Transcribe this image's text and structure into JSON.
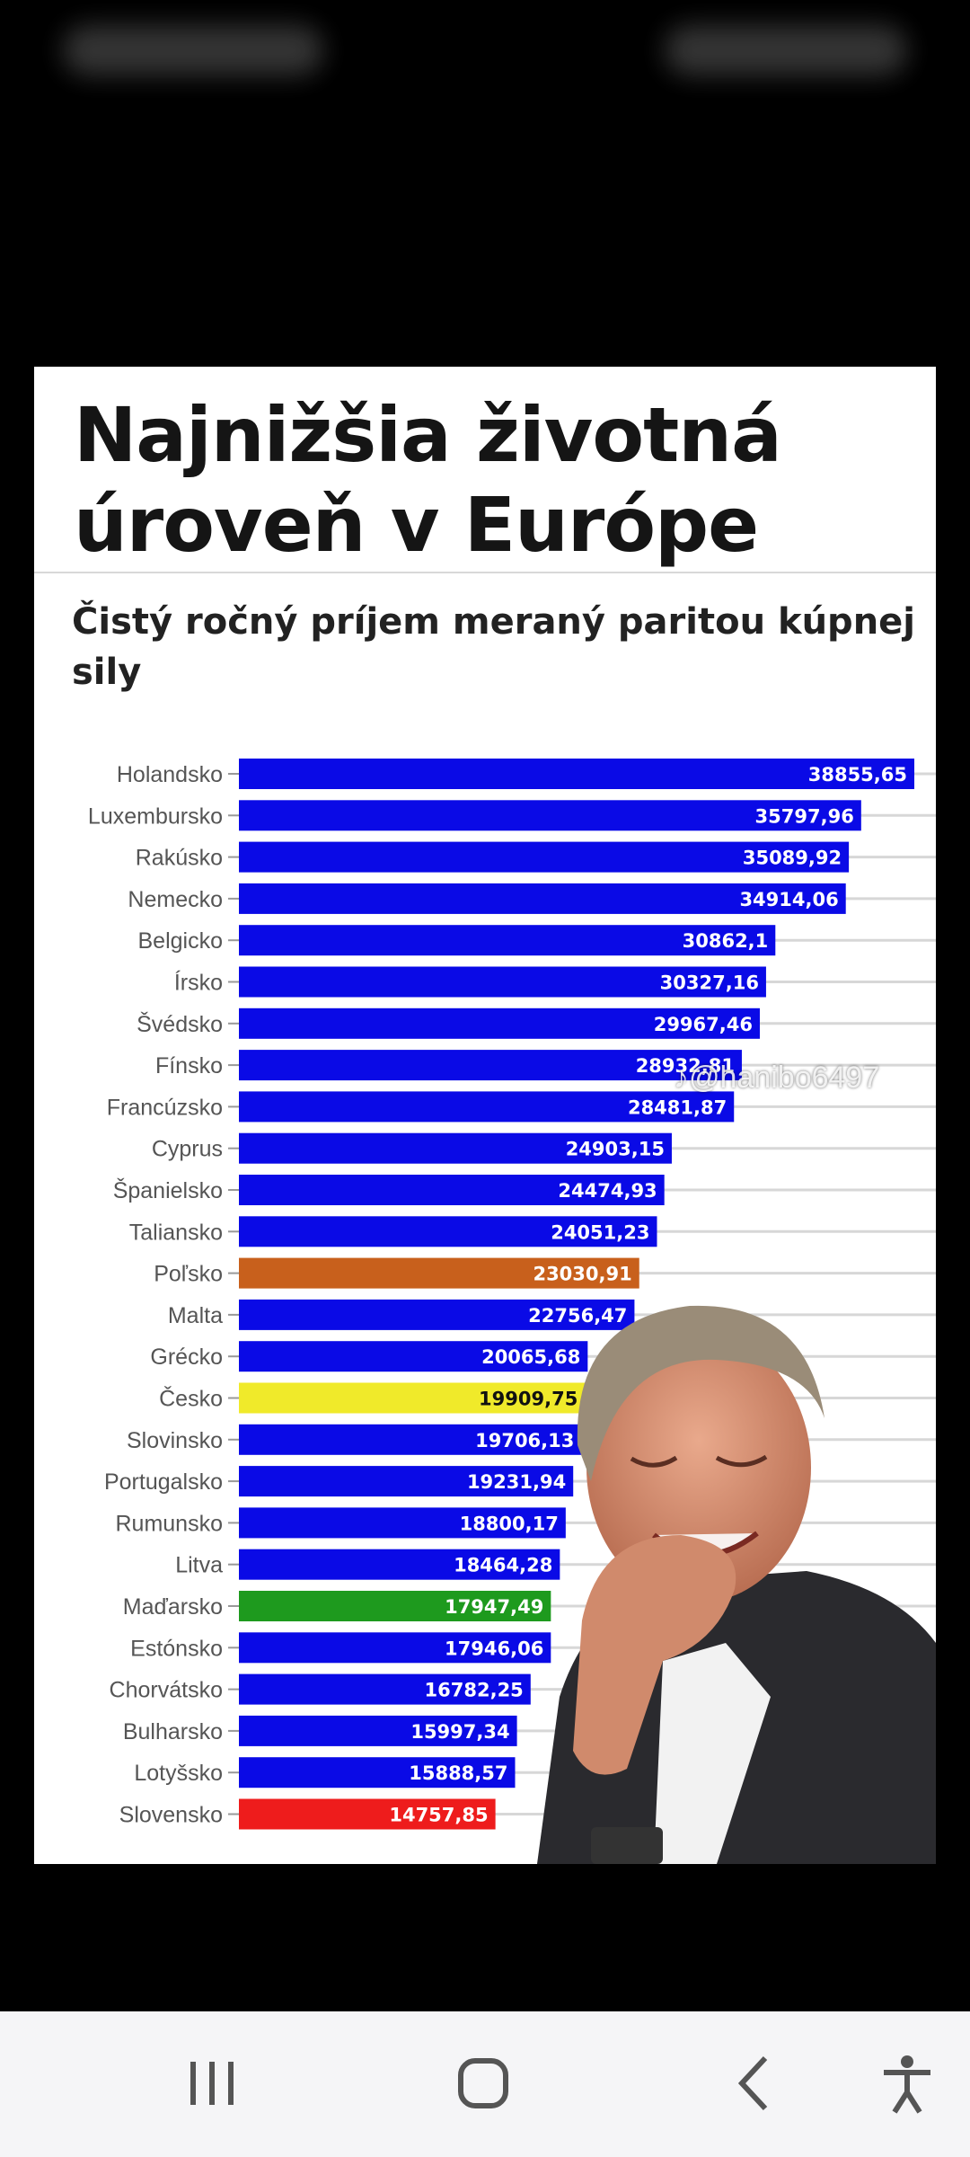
{
  "header": {
    "title": "Najnižšia životná úroveň v Európe",
    "subtitle": "Čistý ročný príjem meraný paritou kúpnej sily"
  },
  "colors": {
    "default_bar": "#0a0ae6",
    "poland": "#c8601c",
    "czechia": "#f0ea2a",
    "hungary": "#1e9a1e",
    "slovakia": "#ee1c1c"
  },
  "chart_data": {
    "type": "bar",
    "orientation": "horizontal",
    "categories": [
      "Holandsko",
      "Luxembursko",
      "Rakúsko",
      "Nemecko",
      "Belgicko",
      "Írsko",
      "Švédsko",
      "Fínsko",
      "Francúzsko",
      "Cyprus",
      "Španielsko",
      "Taliansko",
      "Poľsko",
      "Malta",
      "Grécko",
      "Česko",
      "Slovinsko",
      "Portugalsko",
      "Rumunsko",
      "Litva",
      "Maďarsko",
      "Estónsko",
      "Chorvátsko",
      "Bulharsko",
      "Lotyšsko",
      "Slovensko"
    ],
    "values": [
      38855.65,
      35797.96,
      35089.92,
      34914.06,
      30862.1,
      30327.16,
      29967.46,
      28932.81,
      28481.87,
      24903.15,
      24474.93,
      24051.23,
      23030.91,
      22756.47,
      20065.68,
      19909.75,
      19706.13,
      19231.94,
      18800.17,
      18464.28,
      17947.49,
      17946.06,
      16782.25,
      15997.34,
      15888.57,
      14757.85
    ],
    "value_labels": [
      "38855,65",
      "35797,96",
      "35089,92",
      "34914,06",
      "30862,1",
      "30327,16",
      "29967,46",
      "28932,81",
      "28481,87",
      "24903,15",
      "24474,93",
      "24051,23",
      "23030,91",
      "22756,47",
      "20065,68",
      "19909,75",
      "19706,13",
      "19231,94",
      "18800,17",
      "18464,28",
      "17947,49",
      "17946,06",
      "16782,25",
      "15997,34",
      "15888,57",
      "14757,85"
    ],
    "highlight_colors": {
      "Poľsko": "#c8601c",
      "Česko": "#f0ea2a",
      "Maďarsko": "#1e9a1e",
      "Slovensko": "#ee1c1c"
    },
    "grid": true,
    "xlim": [
      0,
      38855.65
    ]
  },
  "watermark": {
    "text": "@hanibo6497",
    "icon": "tiktok-icon"
  },
  "navbar": {
    "recents": "recents-icon",
    "home": "home-icon",
    "back": "back-icon",
    "accessibility": "accessibility-icon"
  }
}
